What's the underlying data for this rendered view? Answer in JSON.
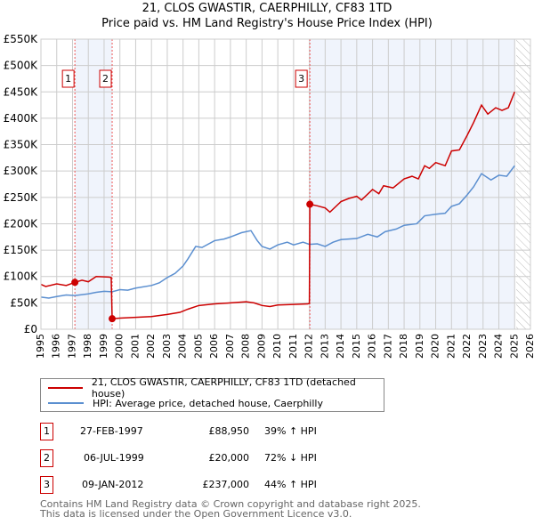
{
  "chart_data": {
    "type": "line",
    "title": "21, CLOS GWASTIR, CAERPHILLY, CF83 1TD",
    "subtitle": "Price paid vs. HM Land Registry's House Price Index (HPI)",
    "xlim": [
      1995,
      2026
    ],
    "ylim": [
      0,
      550000
    ],
    "x_ticks": [
      "1995",
      "1996",
      "1997",
      "1998",
      "1999",
      "2000",
      "2001",
      "2002",
      "2003",
      "2004",
      "2005",
      "2006",
      "2007",
      "2008",
      "2009",
      "2010",
      "2011",
      "2012",
      "2013",
      "2014",
      "2015",
      "2016",
      "2017",
      "2018",
      "2019",
      "2020",
      "2021",
      "2022",
      "2023",
      "2024",
      "2025",
      "2026"
    ],
    "y_ticks": [
      {
        "v": 0,
        "label": "£0"
      },
      {
        "v": 50000,
        "label": "£50K"
      },
      {
        "v": 100000,
        "label": "£100K"
      },
      {
        "v": 150000,
        "label": "£150K"
      },
      {
        "v": 200000,
        "label": "£200K"
      },
      {
        "v": 250000,
        "label": "£250K"
      },
      {
        "v": 300000,
        "label": "£300K"
      },
      {
        "v": 350000,
        "label": "£350K"
      },
      {
        "v": 400000,
        "label": "£400K"
      },
      {
        "v": 450000,
        "label": "£450K"
      },
      {
        "v": 500000,
        "label": "£500K"
      },
      {
        "v": 550000,
        "label": "£550K"
      }
    ],
    "grid": true,
    "shaded_ranges": [
      [
        1997.15,
        1999.51
      ],
      [
        2012.03,
        2025.0
      ]
    ],
    "hatched_range": [
      2025.1,
      2026
    ],
    "series": [
      {
        "name": "21, CLOS GWASTIR, CAERPHILLY, CF83 1TD (detached house)",
        "color": "#cc0000",
        "points": [
          [
            1995,
            85000
          ],
          [
            1995.3,
            81000
          ],
          [
            1996,
            86000
          ],
          [
            1996.6,
            83000
          ],
          [
            1997.15,
            88950
          ],
          [
            1997.6,
            93000
          ],
          [
            1998,
            90000
          ],
          [
            1998.5,
            100000
          ],
          [
            1999.3,
            99000
          ],
          [
            1999.45,
            98000
          ],
          [
            1999.51,
            20000
          ],
          [
            2000,
            21000
          ],
          [
            2001,
            22500
          ],
          [
            2002,
            24000
          ],
          [
            2003,
            28000
          ],
          [
            2003.8,
            32000
          ],
          [
            2004.3,
            38000
          ],
          [
            2005,
            45000
          ],
          [
            2006,
            48000
          ],
          [
            2007,
            50000
          ],
          [
            2008,
            52000
          ],
          [
            2008.5,
            50000
          ],
          [
            2009,
            45000
          ],
          [
            2009.5,
            43000
          ],
          [
            2010,
            46000
          ],
          [
            2011,
            47000
          ],
          [
            2011.9,
            48000
          ],
          [
            2012.0,
            49000
          ],
          [
            2012.03,
            237000
          ],
          [
            2012.5,
            234000
          ],
          [
            2013,
            230000
          ],
          [
            2013.3,
            222000
          ],
          [
            2014,
            242000
          ],
          [
            2014.5,
            248000
          ],
          [
            2015,
            252000
          ],
          [
            2015.3,
            245000
          ],
          [
            2016,
            265000
          ],
          [
            2016.4,
            257000
          ],
          [
            2016.7,
            272000
          ],
          [
            2017.3,
            268000
          ],
          [
            2018,
            285000
          ],
          [
            2018.5,
            290000
          ],
          [
            2018.9,
            285000
          ],
          [
            2019.3,
            310000
          ],
          [
            2019.6,
            305000
          ],
          [
            2020,
            316000
          ],
          [
            2020.6,
            310000
          ],
          [
            2021,
            338000
          ],
          [
            2021.5,
            340000
          ],
          [
            2022,
            368000
          ],
          [
            2022.4,
            392000
          ],
          [
            2022.9,
            425000
          ],
          [
            2023.3,
            408000
          ],
          [
            2023.8,
            420000
          ],
          [
            2024.2,
            415000
          ],
          [
            2024.6,
            420000
          ],
          [
            2025,
            450000
          ]
        ]
      },
      {
        "name": "HPI: Average price, detached house, Caerphilly",
        "color": "#5b8fd0",
        "points": [
          [
            1995,
            61000
          ],
          [
            1995.5,
            59000
          ],
          [
            1996,
            62000
          ],
          [
            1996.6,
            65000
          ],
          [
            1997.15,
            64000
          ],
          [
            1998,
            67000
          ],
          [
            1998.5,
            70000
          ],
          [
            1999,
            72000
          ],
          [
            1999.5,
            71000
          ],
          [
            2000,
            75000
          ],
          [
            2000.5,
            74000
          ],
          [
            2001,
            78000
          ],
          [
            2002,
            83000
          ],
          [
            2002.5,
            88000
          ],
          [
            2003,
            98000
          ],
          [
            2003.5,
            106000
          ],
          [
            2004,
            120000
          ],
          [
            2004.3,
            133000
          ],
          [
            2004.8,
            157000
          ],
          [
            2005.2,
            155000
          ],
          [
            2006,
            168000
          ],
          [
            2006.6,
            171000
          ],
          [
            2007,
            175000
          ],
          [
            2007.7,
            183000
          ],
          [
            2008.3,
            187000
          ],
          [
            2008.7,
            168000
          ],
          [
            2009,
            157000
          ],
          [
            2009.5,
            152000
          ],
          [
            2010,
            160000
          ],
          [
            2010.6,
            165000
          ],
          [
            2011,
            160000
          ],
          [
            2011.6,
            165000
          ],
          [
            2012,
            161000
          ],
          [
            2012.5,
            162000
          ],
          [
            2013,
            157000
          ],
          [
            2013.5,
            165000
          ],
          [
            2014,
            170000
          ],
          [
            2015,
            172000
          ],
          [
            2015.7,
            180000
          ],
          [
            2016.3,
            175000
          ],
          [
            2016.8,
            185000
          ],
          [
            2017.5,
            190000
          ],
          [
            2018,
            197000
          ],
          [
            2018.8,
            200000
          ],
          [
            2019.3,
            215000
          ],
          [
            2020,
            218000
          ],
          [
            2020.6,
            220000
          ],
          [
            2021,
            233000
          ],
          [
            2021.5,
            238000
          ],
          [
            2022,
            255000
          ],
          [
            2022.4,
            270000
          ],
          [
            2022.9,
            295000
          ],
          [
            2023.5,
            283000
          ],
          [
            2024,
            292000
          ],
          [
            2024.5,
            290000
          ],
          [
            2025,
            310000
          ]
        ]
      }
    ],
    "sales": [
      {
        "n": "1",
        "x": 1997.15,
        "y": 88950
      },
      {
        "n": "2",
        "x": 1999.51,
        "y": 20000
      },
      {
        "n": "3",
        "x": 2012.03,
        "y": 237000
      }
    ]
  },
  "legend": {
    "property": "21, CLOS GWASTIR, CAERPHILLY, CF83 1TD (detached house)",
    "hpi": "HPI: Average price, detached house, Caerphilly"
  },
  "table": [
    {
      "n": "1",
      "date": "27-FEB-1997",
      "price": "£88,950",
      "hpi": "39% ↑ HPI"
    },
    {
      "n": "2",
      "date": "06-JUL-1999",
      "price": "£20,000",
      "hpi": "72% ↓ HPI"
    },
    {
      "n": "3",
      "date": "09-JAN-2012",
      "price": "£237,000",
      "hpi": "44% ↑ HPI"
    }
  ],
  "footer": {
    "line1": "Contains HM Land Registry data © Crown copyright and database right 2025.",
    "line2": "This data is licensed under the Open Government Licence v3.0."
  }
}
